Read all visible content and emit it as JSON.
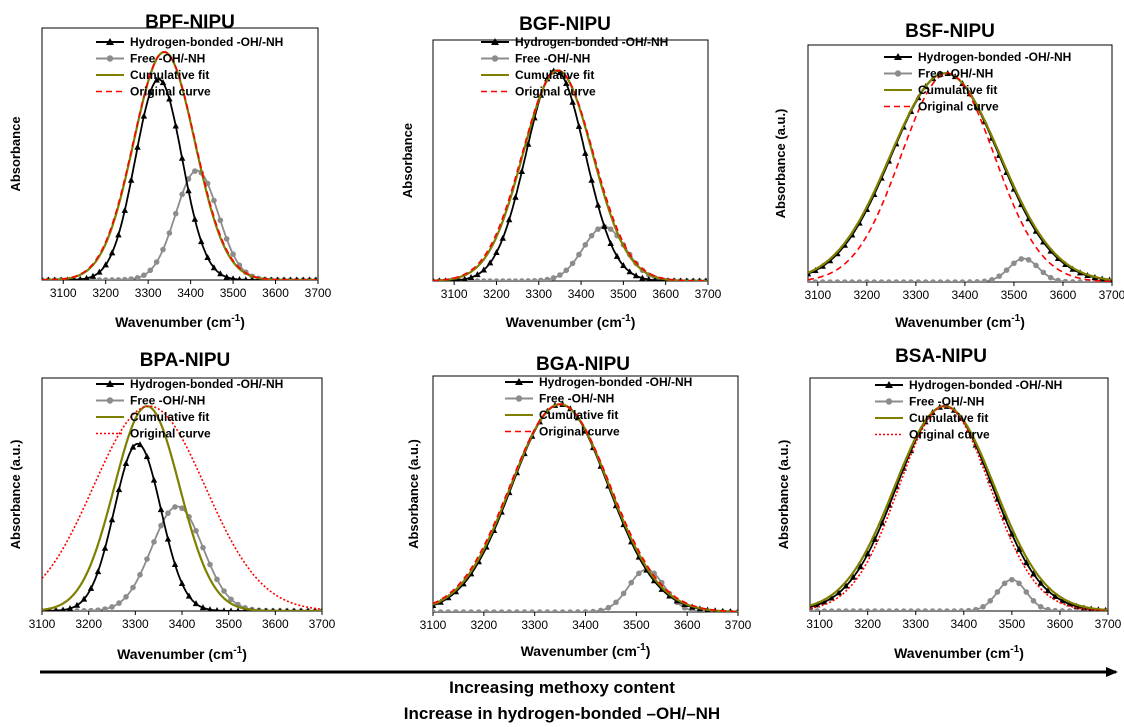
{
  "figure": {
    "caption_line1": "Increasing methoxy content",
    "caption_line2": "Increase in hydrogen-bonded –OH/–NH"
  },
  "colors": {
    "hbonded": "#000000",
    "free": "#8c8c8c",
    "cumulative": "#7f7f00",
    "original": "#ff0000"
  },
  "chart_data": [
    {
      "type": "line",
      "title": "BPF-NIPU",
      "xlabel": "Wavenumber (cm⁻¹)",
      "ylabel": "Absorbance",
      "xlim": [
        3050,
        3700
      ],
      "ylim": [
        0,
        1.0
      ],
      "xticks": [
        3100,
        3200,
        3300,
        3400,
        3500,
        3600,
        3700
      ],
      "legend_position": "top-right",
      "series": [
        {
          "name": "Hydrogen-bonded -OH/-NH",
          "key": "hbonded",
          "peak": 3325,
          "height": 0.88,
          "sigma": 55
        },
        {
          "name": "Free -OH/-NH",
          "key": "free",
          "peak": 3415,
          "height": 0.48,
          "sigma": 50
        },
        {
          "name": "Cumulative fit",
          "key": "cumulative",
          "peak": 3338,
          "height": 1.0,
          "sigma": 72
        },
        {
          "name": "Original curve",
          "key": "original",
          "peak": 3338,
          "height": 1.0,
          "sigma": 73
        }
      ]
    },
    {
      "type": "line",
      "title": "BGF-NIPU",
      "xlabel": "Wavenumber (cm⁻¹)",
      "ylabel": "Absorbance",
      "xlim": [
        3050,
        3700
      ],
      "ylim": [
        0,
        1.0
      ],
      "xticks": [
        3100,
        3200,
        3300,
        3400,
        3500,
        3600,
        3700
      ],
      "legend_position": "top-right",
      "series": [
        {
          "name": "Hydrogen-bonded -OH/-NH",
          "key": "hbonded",
          "peak": 3340,
          "height": 0.97,
          "sigma": 70
        },
        {
          "name": "Free -OH/-NH",
          "key": "free",
          "peak": 3455,
          "height": 0.25,
          "sigma": 50
        },
        {
          "name": "Cumulative fit",
          "key": "cumulative",
          "peak": 3345,
          "height": 0.97,
          "sigma": 82
        },
        {
          "name": "Original curve",
          "key": "original",
          "peak": 3345,
          "height": 0.97,
          "sigma": 84
        }
      ]
    },
    {
      "type": "line",
      "title": "BSF-NIPU",
      "xlabel": "Wavenumber (cm⁻¹)",
      "ylabel": "Absorbance (a.u.)",
      "xlim": [
        3080,
        3700
      ],
      "ylim": [
        0,
        1.0
      ],
      "xticks": [
        3100,
        3200,
        3300,
        3400,
        3500,
        3600,
        3700
      ],
      "legend_position": "top-right",
      "series": [
        {
          "name": "Hydrogen-bonded -OH/-NH",
          "key": "hbonded",
          "peak": 3360,
          "height": 0.98,
          "sigma": 110
        },
        {
          "name": "Free -OH/-NH",
          "key": "free",
          "peak": 3520,
          "height": 0.11,
          "sigma": 30
        },
        {
          "name": "Cumulative fit",
          "key": "cumulative",
          "peak": 3360,
          "height": 0.98,
          "sigma": 112
        },
        {
          "name": "Original curve",
          "key": "original",
          "peak": 3365,
          "height": 0.98,
          "sigma": 95
        }
      ]
    },
    {
      "type": "line",
      "title": "BPA-NIPU",
      "xlabel": "Wavenumber (cm⁻¹)",
      "ylabel": "Absorbance (a.u.)",
      "xlim": [
        3100,
        3700
      ],
      "ylim": [
        0,
        1.0
      ],
      "xticks": [
        3100,
        3200,
        3300,
        3400,
        3500,
        3600,
        3700
      ],
      "legend_position": "top-right",
      "series": [
        {
          "name": "Hydrogen-bonded -OH/-NH",
          "key": "hbonded",
          "peak": 3305,
          "height": 0.8,
          "sigma": 50
        },
        {
          "name": "Free -OH/-NH",
          "key": "free",
          "peak": 3390,
          "height": 0.5,
          "sigma": 55
        },
        {
          "name": "Cumulative fit",
          "key": "cumulative",
          "peak": 3325,
          "height": 0.98,
          "sigma": 70
        },
        {
          "name": "Original curve",
          "key": "original",
          "peak": 3330,
          "height": 0.98,
          "sigma": 120
        }
      ]
    },
    {
      "type": "line",
      "title": "BGA-NIPU",
      "xlabel": "Wavenumber (cm⁻¹)",
      "ylabel": "Absorbance (a.u.)",
      "xlim": [
        3100,
        3700
      ],
      "ylim": [
        0,
        1.0
      ],
      "xticks": [
        3100,
        3200,
        3300,
        3400,
        3500,
        3600,
        3700
      ],
      "legend_position": "top-right",
      "series": [
        {
          "name": "Hydrogen-bonded -OH/-NH",
          "key": "hbonded",
          "peak": 3350,
          "height": 0.98,
          "sigma": 95
        },
        {
          "name": "Free -OH/-NH",
          "key": "free",
          "peak": 3520,
          "height": 0.2,
          "sigma": 35
        },
        {
          "name": "Cumulative fit",
          "key": "cumulative",
          "peak": 3350,
          "height": 0.98,
          "sigma": 97
        },
        {
          "name": "Original curve",
          "key": "original",
          "peak": 3350,
          "height": 0.98,
          "sigma": 99
        }
      ]
    },
    {
      "type": "line",
      "title": "BSA-NIPU",
      "xlabel": "Wavenumber (cm⁻¹)",
      "ylabel": "Absorbance (a.u.)",
      "xlim": [
        3080,
        3700
      ],
      "ylim": [
        0,
        1.0
      ],
      "xticks": [
        3100,
        3200,
        3300,
        3400,
        3500,
        3600,
        3700
      ],
      "legend_position": "top-right",
      "series": [
        {
          "name": "Hydrogen-bonded -OH/-NH",
          "key": "hbonded",
          "peak": 3360,
          "height": 0.98,
          "sigma": 100
        },
        {
          "name": "Free -OH/-NH",
          "key": "free",
          "peak": 3500,
          "height": 0.15,
          "sigma": 30
        },
        {
          "name": "Cumulative fit",
          "key": "cumulative",
          "peak": 3360,
          "height": 0.98,
          "sigma": 104
        },
        {
          "name": "Original curve",
          "key": "original",
          "peak": 3360,
          "height": 0.98,
          "sigma": 95
        }
      ]
    }
  ]
}
